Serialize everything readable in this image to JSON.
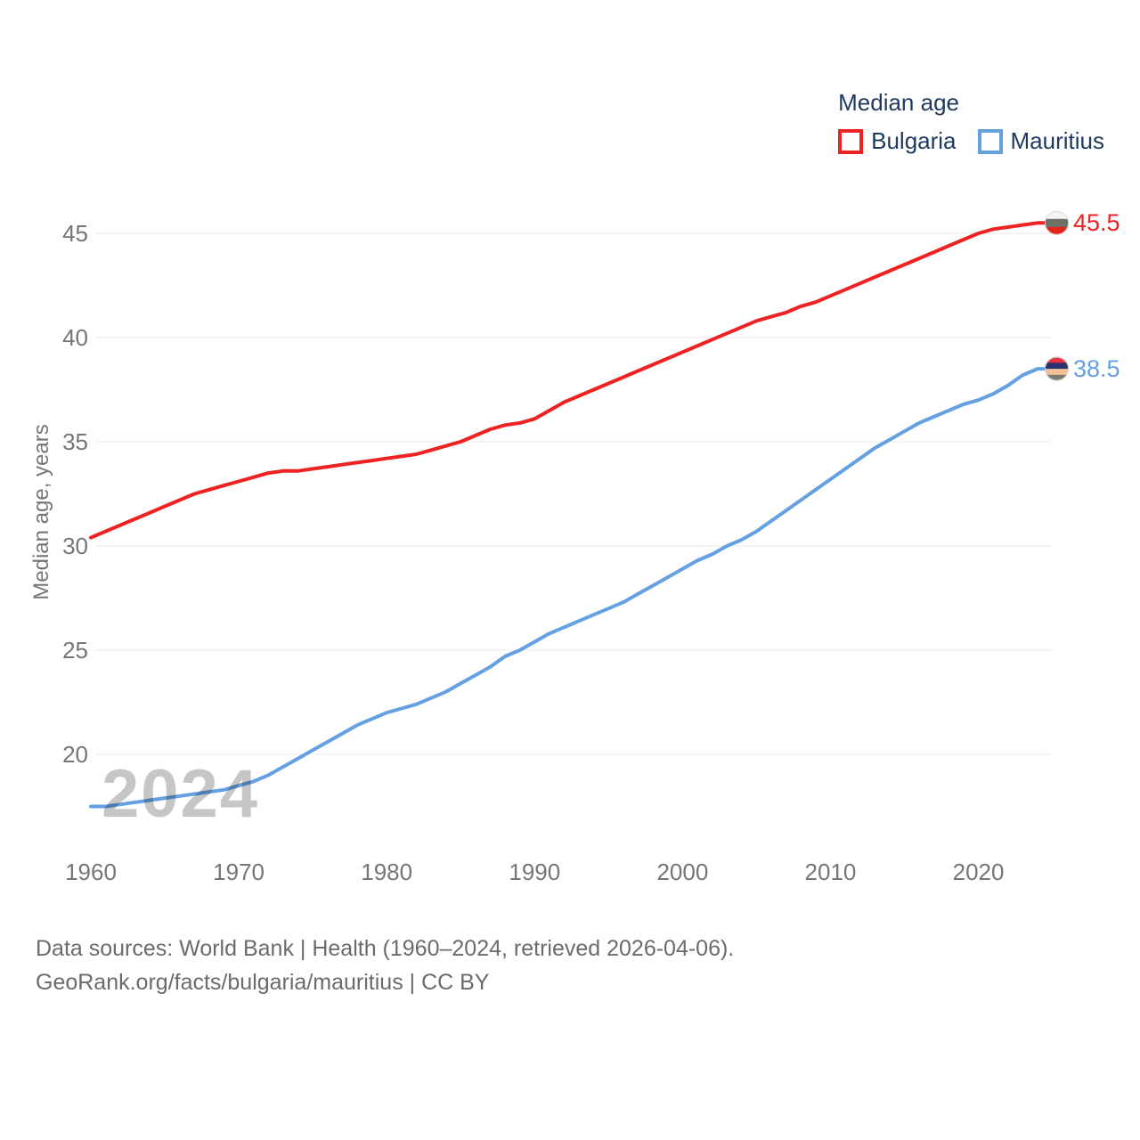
{
  "legend": {
    "title": "Median age",
    "items": [
      {
        "label": "Bulgaria",
        "color": "#ee2222"
      },
      {
        "label": "Mauritius",
        "color": "#64a0e2"
      }
    ]
  },
  "watermark": "2024",
  "footer": {
    "line1": "Data sources: World Bank | Health (1960–2024, retrieved 2026-04-06).",
    "line2": "GeoRank.org/facts/bulgaria/mauritius | CC BY"
  },
  "chart_data": {
    "type": "line",
    "title": "Median age",
    "xlabel": "",
    "ylabel": "Median age, years",
    "grid": "horizontal",
    "legend_position": "top-right",
    "ylim": [
      16.5,
      46.5
    ],
    "xlim": [
      1960,
      2024
    ],
    "yticks": [
      20,
      25,
      30,
      35,
      40,
      45
    ],
    "xticks": [
      1960,
      1970,
      1980,
      1990,
      2000,
      2010,
      2020
    ],
    "x": [
      1960,
      1961,
      1962,
      1963,
      1964,
      1965,
      1966,
      1967,
      1968,
      1969,
      1970,
      1971,
      1972,
      1973,
      1974,
      1975,
      1976,
      1977,
      1978,
      1979,
      1980,
      1981,
      1982,
      1983,
      1984,
      1985,
      1986,
      1987,
      1988,
      1989,
      1990,
      1991,
      1992,
      1993,
      1994,
      1995,
      1996,
      1997,
      1998,
      1999,
      2000,
      2001,
      2002,
      2003,
      2004,
      2005,
      2006,
      2007,
      2008,
      2009,
      2010,
      2011,
      2012,
      2013,
      2014,
      2015,
      2016,
      2017,
      2018,
      2019,
      2020,
      2021,
      2022,
      2023,
      2024
    ],
    "series": [
      {
        "name": "Bulgaria",
        "color": "#ee2222",
        "end_label": "45.5",
        "flag_stripes": [
          "#f4f4f2",
          "#6d7269",
          "#e2241a"
        ],
        "values": [
          30.4,
          30.7,
          31.0,
          31.3,
          31.6,
          31.9,
          32.2,
          32.5,
          32.7,
          32.9,
          33.1,
          33.3,
          33.5,
          33.6,
          33.6,
          33.7,
          33.8,
          33.9,
          34.0,
          34.1,
          34.2,
          34.3,
          34.4,
          34.6,
          34.8,
          35.0,
          35.3,
          35.6,
          35.8,
          35.9,
          36.1,
          36.5,
          36.9,
          37.2,
          37.5,
          37.8,
          38.1,
          38.4,
          38.7,
          39.0,
          39.3,
          39.6,
          39.9,
          40.2,
          40.5,
          40.8,
          41.0,
          41.2,
          41.5,
          41.7,
          42.0,
          42.3,
          42.6,
          42.9,
          43.2,
          43.5,
          43.8,
          44.1,
          44.4,
          44.7,
          45.0,
          45.2,
          45.3,
          45.4,
          45.5
        ]
      },
      {
        "name": "Mauritius",
        "color": "#64a0e2",
        "end_label": "38.5",
        "flag_stripes": [
          "#e7333d",
          "#2a316e",
          "#f2c19b",
          "#7a7e6f"
        ],
        "values": [
          17.5,
          17.5,
          17.6,
          17.7,
          17.8,
          17.9,
          18.0,
          18.1,
          18.2,
          18.3,
          18.5,
          18.7,
          19.0,
          19.4,
          19.8,
          20.2,
          20.6,
          21.0,
          21.4,
          21.7,
          22.0,
          22.2,
          22.4,
          22.7,
          23.0,
          23.4,
          23.8,
          24.2,
          24.7,
          25.0,
          25.4,
          25.8,
          26.1,
          26.4,
          26.7,
          27.0,
          27.3,
          27.7,
          28.1,
          28.5,
          28.9,
          29.3,
          29.6,
          30.0,
          30.3,
          30.7,
          31.2,
          31.7,
          32.2,
          32.7,
          33.2,
          33.7,
          34.2,
          34.7,
          35.1,
          35.5,
          35.9,
          36.2,
          36.5,
          36.8,
          37.0,
          37.3,
          37.7,
          38.2,
          38.5
        ]
      }
    ]
  }
}
